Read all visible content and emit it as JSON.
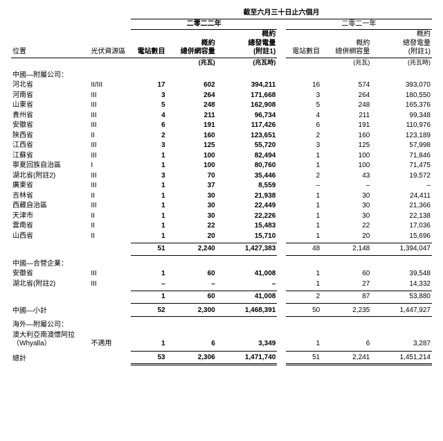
{
  "period_header": "截至六月三十日止六個月",
  "years": {
    "y2022": "二零二二年",
    "y2021": "二零二一年"
  },
  "col_labels": {
    "location": "位置",
    "resource": "光伏資源區",
    "stations": "電站數目",
    "capacity": "概約\n總併網容量",
    "generation": "概約\n總發電量\n(附註1)",
    "unit_mw": "(兆瓦)",
    "unit_mwh": "(兆瓦時)"
  },
  "sections": {
    "cn_sub_title": "中國—附屬公司：",
    "cn_jv_title": "中國—合營企業：",
    "cn_subtotal_title": "中國—小計",
    "ov_sub_title": "海外—附屬公司：",
    "grand_total_title": "總計"
  },
  "cn_sub_rows": [
    {
      "loc": "河北省",
      "res": "II/III",
      "n22": "17",
      "c22": "602",
      "g22": "394,211",
      "n21": "16",
      "c21": "574",
      "g21": "393,070"
    },
    {
      "loc": "河南省",
      "res": "III",
      "n22": "3",
      "c22": "264",
      "g22": "171,668",
      "n21": "3",
      "c21": "264",
      "g21": "180,550"
    },
    {
      "loc": "山東省",
      "res": "III",
      "n22": "5",
      "c22": "248",
      "g22": "162,908",
      "n21": "5",
      "c21": "248",
      "g21": "165,376"
    },
    {
      "loc": "貴州省",
      "res": "III",
      "n22": "4",
      "c22": "211",
      "g22": "96,734",
      "n21": "4",
      "c21": "211",
      "g21": "99,348"
    },
    {
      "loc": "安徽省",
      "res": "III",
      "n22": "6",
      "c22": "191",
      "g22": "117,426",
      "n21": "6",
      "c21": "191",
      "g21": "110,976"
    },
    {
      "loc": "陝西省",
      "res": "II",
      "n22": "2",
      "c22": "160",
      "g22": "123,651",
      "n21": "2",
      "c21": "160",
      "g21": "123,189"
    },
    {
      "loc": "江西省",
      "res": "III",
      "n22": "3",
      "c22": "125",
      "g22": "55,720",
      "n21": "3",
      "c21": "125",
      "g21": "57,998"
    },
    {
      "loc": "江蘇省",
      "res": "III",
      "n22": "1",
      "c22": "100",
      "g22": "82,494",
      "n21": "1",
      "c21": "100",
      "g21": "71,846"
    },
    {
      "loc": "寧夏回族自治區",
      "res": "I",
      "n22": "1",
      "c22": "100",
      "g22": "80,760",
      "n21": "1",
      "c21": "100",
      "g21": "71,475"
    },
    {
      "loc": "湖北省(附註2)",
      "res": "III",
      "n22": "3",
      "c22": "70",
      "g22": "35,446",
      "n21": "2",
      "c21": "43",
      "g21": "19,572"
    },
    {
      "loc": "廣東省",
      "res": "III",
      "n22": "1",
      "c22": "37",
      "g22": "8,559",
      "n21": "–",
      "c21": "–",
      "g21": "–"
    },
    {
      "loc": "吉林省",
      "res": "II",
      "n22": "1",
      "c22": "30",
      "g22": "21,938",
      "n21": "1",
      "c21": "30",
      "g21": "24,411"
    },
    {
      "loc": "西藏自治區",
      "res": "III",
      "n22": "1",
      "c22": "30",
      "g22": "22,449",
      "n21": "1",
      "c21": "30",
      "g21": "21,366"
    },
    {
      "loc": "天津市",
      "res": "II",
      "n22": "1",
      "c22": "30",
      "g22": "22,226",
      "n21": "1",
      "c21": "30",
      "g21": "22,138"
    },
    {
      "loc": "雲南省",
      "res": "II",
      "n22": "1",
      "c22": "22",
      "g22": "15,483",
      "n21": "1",
      "c21": "22",
      "g21": "17,036"
    },
    {
      "loc": "山西省",
      "res": "II",
      "n22": "1",
      "c22": "20",
      "g22": "15,710",
      "n21": "1",
      "c21": "20",
      "g21": "15,696"
    }
  ],
  "cn_sub_total": {
    "n22": "51",
    "c22": "2,240",
    "g22": "1,427,383",
    "n21": "48",
    "c21": "2,148",
    "g21": "1,394,047"
  },
  "cn_jv_rows": [
    {
      "loc": "安徽省",
      "res": "III",
      "n22": "1",
      "c22": "60",
      "g22": "41,008",
      "n21": "1",
      "c21": "60",
      "g21": "39,548"
    },
    {
      "loc": "湖北省(附註2)",
      "res": "III",
      "n22": "–",
      "c22": "–",
      "g22": "–",
      "n21": "1",
      "c21": "27",
      "g21": "14,332"
    }
  ],
  "cn_jv_total": {
    "n22": "1",
    "c22": "60",
    "g22": "41,008",
    "n21": "2",
    "c21": "87",
    "g21": "53,880"
  },
  "cn_subtotal": {
    "n22": "52",
    "c22": "2,300",
    "g22": "1,468,391",
    "n21": "50",
    "c21": "2,235",
    "g21": "1,447,927"
  },
  "ov_rows": [
    {
      "loc": "澳大利亞南澳懷阿拉（Whyalla）",
      "res": "不適用",
      "n22": "1",
      "c22": "6",
      "g22": "3,349",
      "n21": "1",
      "c21": "6",
      "g21": "3,287"
    }
  ],
  "grand_total": {
    "n22": "53",
    "c22": "2,306",
    "g22": "1,471,740",
    "n21": "51",
    "c21": "2,241",
    "g21": "1,451,214"
  }
}
